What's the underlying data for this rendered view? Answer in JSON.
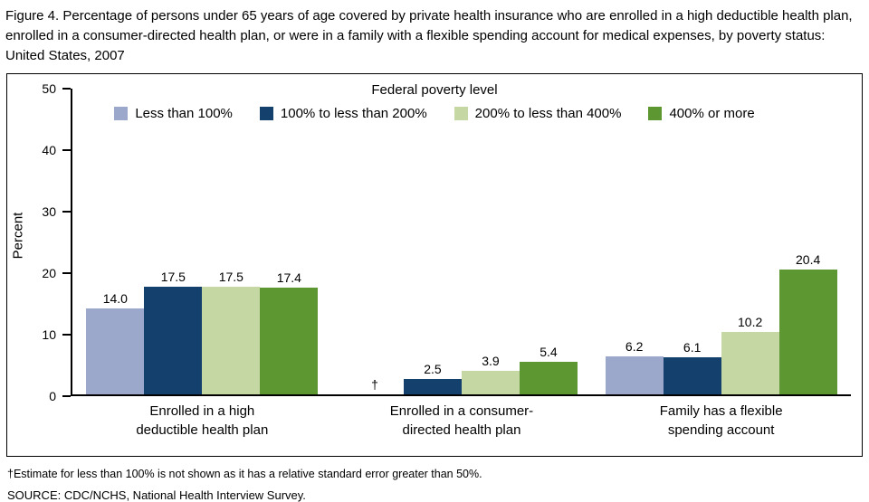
{
  "chart_data": {
    "type": "bar",
    "title": "Figure 4. Percentage of persons under 65 years of age covered by private health insurance who are enrolled in a high deductible health plan, enrolled in a consumer-directed health plan, or were in a family with a flexible spending account for medical expenses, by poverty status: United States, 2007",
    "ylabel": "Percent",
    "ylim": [
      0,
      50
    ],
    "yticks": [
      0,
      10,
      20,
      30,
      40,
      50
    ],
    "legend_title": "Federal poverty level",
    "legend_position": "top-center-inside",
    "grid": false,
    "categories": [
      "Enrolled in a high\ndeductible health plan",
      "Enrolled in a consumer-\ndirected health plan",
      "Family has a flexible\nspending account"
    ],
    "series": [
      {
        "name": "Less than 100%",
        "color": "#9BA8CC",
        "values": [
          14.0,
          null,
          6.2
        ],
        "labels": [
          "14.0",
          "†",
          "6.2"
        ]
      },
      {
        "name": "100% to less than 200%",
        "color": "#14406E",
        "values": [
          17.5,
          2.5,
          6.1
        ],
        "labels": [
          "17.5",
          "2.5",
          "6.1"
        ]
      },
      {
        "name": "200% to less than 400%",
        "color": "#C5D7A3",
        "values": [
          17.5,
          3.9,
          10.2
        ],
        "labels": [
          "17.5",
          "3.9",
          "10.2"
        ]
      },
      {
        "name": "400% or more",
        "color": "#5D9732",
        "values": [
          17.4,
          5.4,
          20.4
        ],
        "labels": [
          "17.4",
          "5.4",
          "20.4"
        ]
      }
    ],
    "footnotes": {
      "dagger": "†Estimate for less than 100% is not shown as it has a relative standard error greater than 50%.",
      "source": "SOURCE: CDC/NCHS, National Health Interview Survey."
    }
  }
}
